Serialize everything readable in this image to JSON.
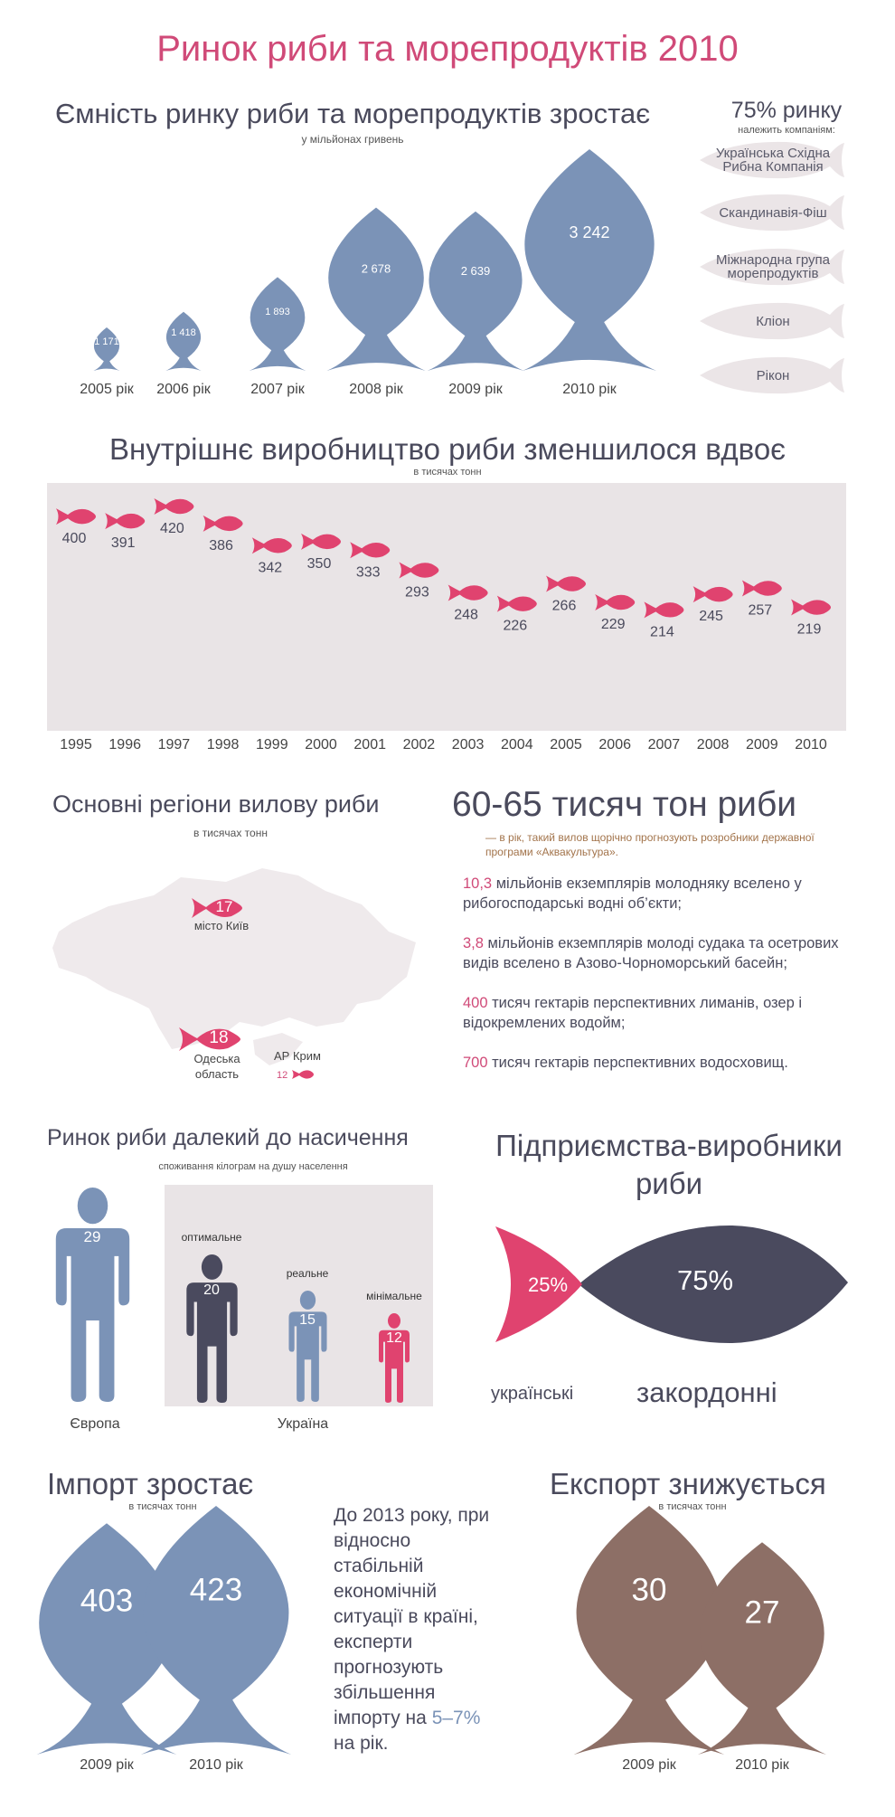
{
  "title": "Ринок риби та морепродуктів 2010",
  "section_capacity": {
    "title": "Ємність ринку риби та морепродуктів зростає",
    "subtitle": "у мільйонах гривень",
    "years": [
      "2005 рік",
      "2006 рік",
      "2007 рік",
      "2008 рік",
      "2009 рік",
      "2010 рік"
    ]
  },
  "companies": {
    "title": "75% ринку",
    "subtitle": "належить компаніям:",
    "items": [
      "Українська Східна Рибна Компанія",
      "Скандинавія-Фіш",
      "Міжнародна група морепродуктів",
      "Кліон",
      "Рікон"
    ]
  },
  "section_production": {
    "title": "Внутрішнє виробництво риби зменшилося вдвоє",
    "subtitle": "в тисячах тонн"
  },
  "section_regions": {
    "title": "Основні регіони вилову риби",
    "subtitle": "в тисячах тонн",
    "regions": [
      {
        "value": "17",
        "label": "місто Київ"
      },
      {
        "value": "18",
        "label": "Одеська область"
      },
      {
        "value": "12",
        "label": "АР Крим"
      }
    ]
  },
  "forecast": {
    "title": "60-65 тисяч тон риби",
    "subtitle": "— в рік, такий вилов щорічно прогнозують розробники державної програми «Аквакультура».",
    "facts": [
      {
        "num": "10,3",
        "text": " мільйонів екземплярів молодняку вселено у рибогосподарські водні об’єкти;"
      },
      {
        "num": "3,8",
        "text": " мільйонів екземплярів молоді судака та осетрових видів вселено в Азово-Чорноморський басейн;"
      },
      {
        "num": "400",
        "text": " тисяч гектарів перспективних лиманів, озер і відокремлених водойм;"
      },
      {
        "num": "700",
        "text": " тисяч гектарів перспективних водосховищ."
      }
    ]
  },
  "section_consumption": {
    "title": "Ринок риби далекий до насичення",
    "subtitle": "споживання кілограм на душу населення",
    "europe_label": "Європа",
    "ukraine_label": "Україна",
    "people": [
      {
        "label": "",
        "value": "29"
      },
      {
        "label": "оптимальне",
        "value": "20"
      },
      {
        "label": "реальне",
        "value": "15"
      },
      {
        "label": "мінімальне",
        "value": "12"
      }
    ]
  },
  "section_producers": {
    "title_line1": "Підприємства-виробники",
    "title_line2": "риби",
    "ukrainian_pct": "25%",
    "foreign_pct": "75%",
    "ukrainian_label": "українські",
    "foreign_label": "закордонні"
  },
  "section_import": {
    "title": "Імпорт зростає",
    "subtitle": "в тисячах тонн",
    "values": [
      "403",
      "423"
    ],
    "years": [
      "2009 рік",
      "2010 рік"
    ]
  },
  "import_note": {
    "text": "До 2013 року, при відносно стабільній економічній ситуації в країні, експерти прогнозують збільшення імпорту на",
    "pct": "5–7%",
    "tail": " на рік."
  },
  "section_export": {
    "title": "Експорт знижується",
    "subtitle": "в тисячах тонн",
    "values": [
      "30",
      "27"
    ],
    "years": [
      "2009 рік",
      "2010 рік"
    ]
  },
  "colors": {
    "title_pink": "#d04a78",
    "fish_blue": "#7b93b7",
    "fish_pink": "#e0436f",
    "fish_dark": "#4a4a5e",
    "fish_brown": "#8d6f66",
    "panel_grey": "#e9e4e6"
  },
  "chart_data": [
    {
      "type": "bar",
      "title": "Ємність ринку риби та морепродуктів зростає",
      "subtitle": "у мільйонах гривень",
      "categories": [
        "2005 рік",
        "2006 рік",
        "2007 рік",
        "2008 рік",
        "2009 рік",
        "2010 рік"
      ],
      "values": [
        1171,
        1418,
        1893,
        2678,
        2639,
        3242
      ],
      "value_labels": [
        "1 171",
        "1 418",
        "1 893",
        "2 678",
        "2 639",
        "3 242"
      ]
    },
    {
      "type": "scatter",
      "title": "Внутрішнє виробництво риби зменшилося вдвоє",
      "subtitle": "в тисячах тонн",
      "x": [
        "1995",
        "1996",
        "1997",
        "1998",
        "1999",
        "2000",
        "2001",
        "2002",
        "2003",
        "2004",
        "2005",
        "2006",
        "2007",
        "2008",
        "2009",
        "2010"
      ],
      "values": [
        400,
        391,
        420,
        386,
        342,
        350,
        333,
        293,
        248,
        226,
        266,
        229,
        214,
        245,
        257,
        219
      ]
    },
    {
      "type": "bar",
      "title": "Ринок риби далекий до насичення",
      "subtitle": "споживання кілограм на душу населення",
      "categories": [
        "Європа",
        "оптимальне",
        "реальне",
        "мінімальне"
      ],
      "values": [
        29,
        20,
        15,
        12
      ]
    },
    {
      "type": "pie",
      "title": "Підприємства-виробники риби",
      "categories": [
        "українські",
        "закордонні"
      ],
      "values": [
        25,
        75
      ]
    },
    {
      "type": "bar",
      "title": "Імпорт зростає",
      "subtitle": "в тисячах тонн",
      "categories": [
        "2009 рік",
        "2010 рік"
      ],
      "values": [
        403,
        423
      ]
    },
    {
      "type": "bar",
      "title": "Експорт знижується",
      "subtitle": "в тисячах тонн",
      "categories": [
        "2009 рік",
        "2010 рік"
      ],
      "values": [
        30,
        27
      ]
    }
  ]
}
